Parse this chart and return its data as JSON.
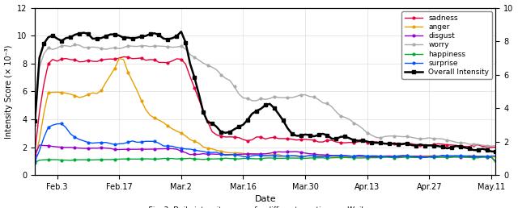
{
  "xlabel": "Date",
  "ylabel_left": "Intensity Score (× 10⁻³)",
  "xlim": [
    0,
    104
  ],
  "ylim_left": [
    0,
    12
  ],
  "ylim_right": [
    0,
    10
  ],
  "xtick_positions": [
    5,
    19,
    33,
    47,
    61,
    75,
    89,
    103
  ],
  "xtick_labels": [
    "Feb.3",
    "Feb.17",
    "Mar.2",
    "Mar.16",
    "Mar.30",
    "Apr.13",
    "Apr.27",
    "May.11"
  ],
  "ytick_left": [
    0,
    2,
    4,
    6,
    8,
    10,
    12
  ],
  "ytick_right": [
    0,
    2,
    4,
    6,
    8,
    10
  ],
  "colors": {
    "sadness": "#e8003a",
    "anger": "#e8a000",
    "disgust": "#9900cc",
    "worry": "#aaaaaa",
    "happiness": "#00aa33",
    "surprise": "#0055ff",
    "overall": "#000000"
  },
  "figsize": [
    6.4,
    2.58
  ],
  "dpi": 100
}
